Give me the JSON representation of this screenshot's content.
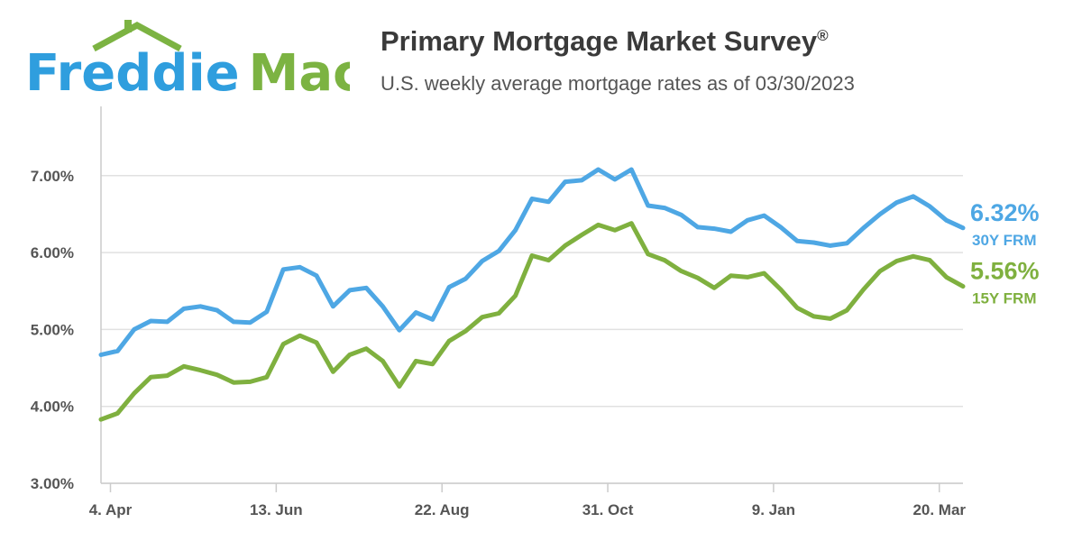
{
  "brand": {
    "word1": "Freddie",
    "word2": "Mac",
    "blue": "#2f9ede",
    "green": "#7cb342"
  },
  "header": {
    "title": "Primary Mortgage Market Survey",
    "title_mark": "®",
    "subtitle": "U.S. weekly average mortgage rates as of 03/30/2023"
  },
  "chart_data": {
    "type": "line",
    "title": "Primary Mortgage Market Survey®",
    "subtitle": "U.S. weekly average mortgage rates as of 03/30/2023",
    "x_start": "2022-03-31",
    "x_step_days": 7,
    "x_ticks": [
      {
        "label": "4. Apr",
        "date": "2022-04-04"
      },
      {
        "label": "13. Jun",
        "date": "2022-06-13"
      },
      {
        "label": "22. Aug",
        "date": "2022-08-22"
      },
      {
        "label": "31. Oct",
        "date": "2022-10-31"
      },
      {
        "label": "9. Jan",
        "date": "2023-01-09"
      },
      {
        "label": "20. Mar",
        "date": "2023-03-20"
      }
    ],
    "y_ticks": [
      "3.00%",
      "4.00%",
      "5.00%",
      "6.00%",
      "7.00%"
    ],
    "ylim": [
      3.0,
      7.9
    ],
    "grid": true,
    "series": [
      {
        "name": "30Y FRM",
        "color": "#4ea7e4",
        "end_value": "6.32%",
        "values": [
          4.67,
          4.72,
          5.0,
          5.11,
          5.1,
          5.27,
          5.3,
          5.25,
          5.1,
          5.09,
          5.23,
          5.78,
          5.81,
          5.7,
          5.3,
          5.51,
          5.54,
          5.3,
          4.99,
          5.22,
          5.13,
          5.55,
          5.66,
          5.89,
          6.02,
          6.29,
          6.7,
          6.66,
          6.92,
          6.94,
          7.08,
          6.95,
          7.08,
          6.61,
          6.58,
          6.49,
          6.33,
          6.31,
          6.27,
          6.42,
          6.48,
          6.33,
          6.15,
          6.13,
          6.09,
          6.12,
          6.32,
          6.5,
          6.65,
          6.73,
          6.6,
          6.42,
          6.32
        ]
      },
      {
        "name": "15Y FRM",
        "color": "#7fb03f",
        "end_value": "5.56%",
        "values": [
          3.83,
          3.91,
          4.17,
          4.38,
          4.4,
          4.52,
          4.47,
          4.41,
          4.31,
          4.32,
          4.38,
          4.81,
          4.92,
          4.83,
          4.45,
          4.67,
          4.75,
          4.59,
          4.26,
          4.59,
          4.55,
          4.85,
          4.98,
          5.16,
          5.21,
          5.44,
          5.96,
          5.9,
          6.09,
          6.23,
          6.36,
          6.29,
          6.38,
          5.98,
          5.9,
          5.76,
          5.67,
          5.54,
          5.7,
          5.68,
          5.73,
          5.52,
          5.28,
          5.17,
          5.14,
          5.25,
          5.52,
          5.76,
          5.89,
          5.95,
          5.9,
          5.68,
          5.56
        ]
      }
    ]
  }
}
